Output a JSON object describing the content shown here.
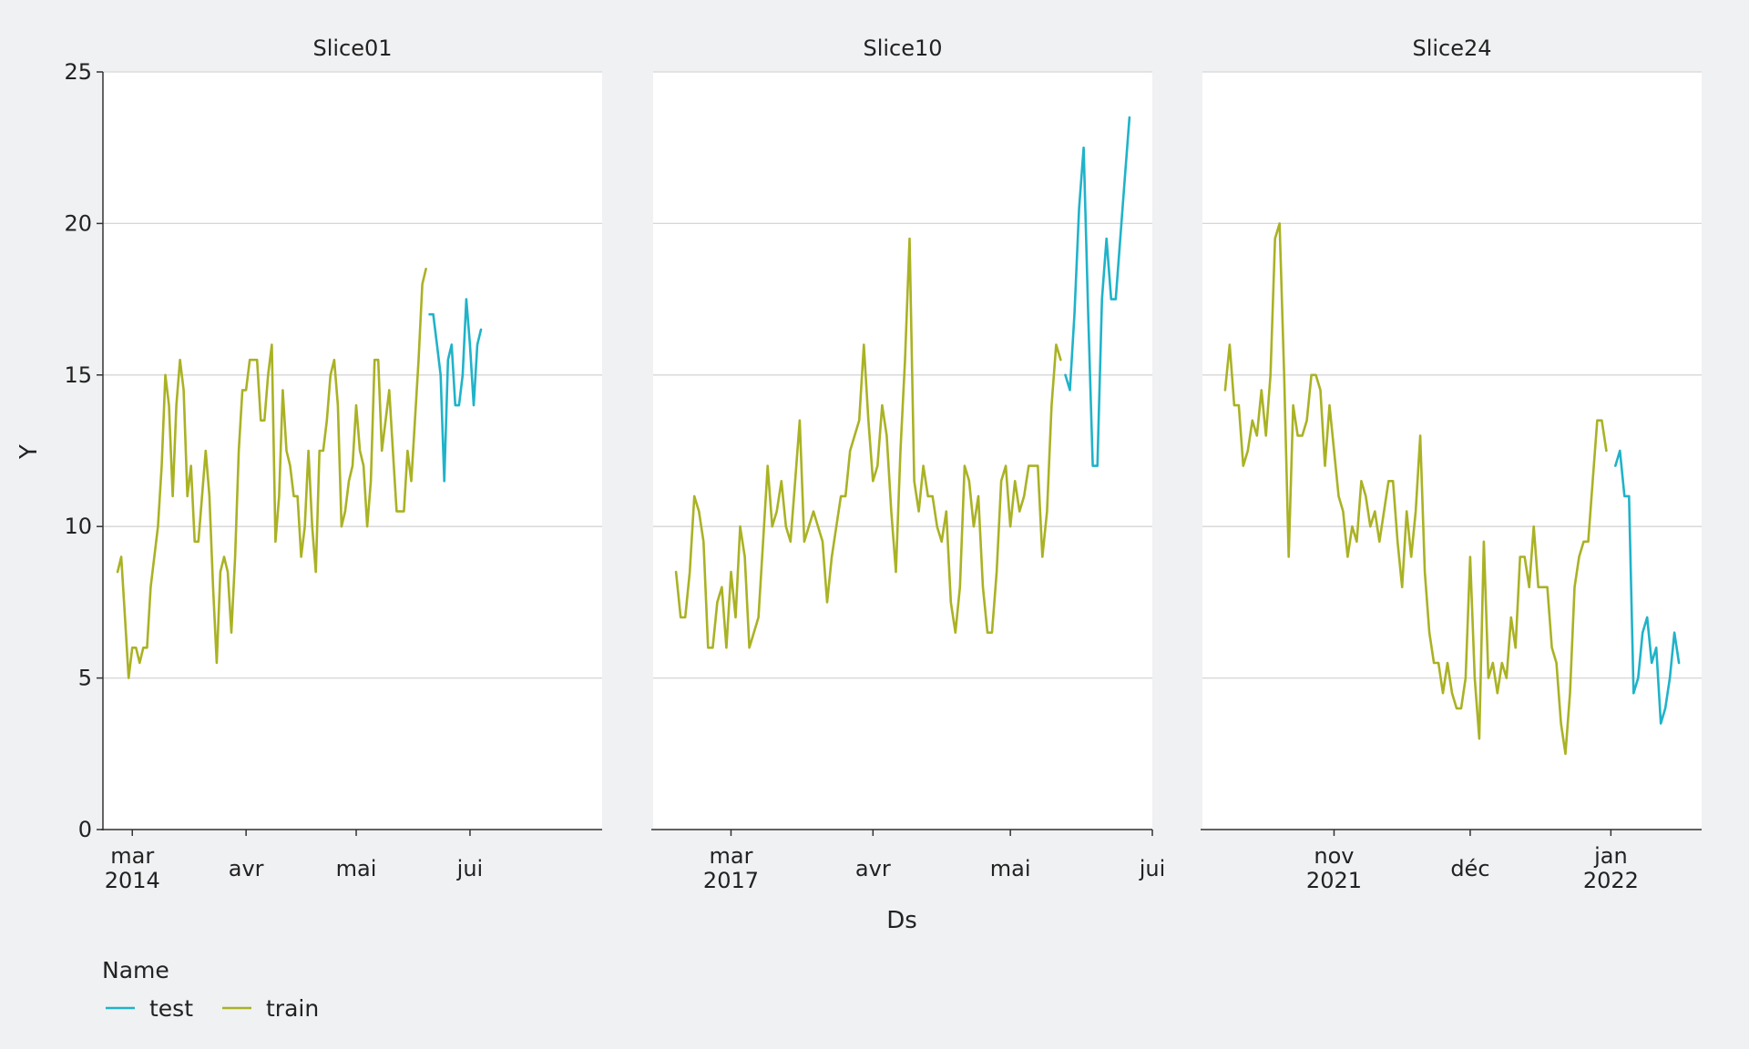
{
  "chart_data": {
    "type": "line",
    "xlabel": "Ds",
    "ylabel": "Y",
    "ylim": [
      0,
      25
    ],
    "y_ticks": [
      "0",
      "5",
      "10",
      "15",
      "20",
      "25"
    ],
    "grid": "horizontal",
    "legend": {
      "title": "Name",
      "position": "bottom-left",
      "items": [
        {
          "name": "test",
          "color": "#1fb3c9"
        },
        {
          "name": "train",
          "color": "#aab224"
        }
      ]
    },
    "panels": [
      {
        "title": "Slice01",
        "xlim": [
          "2014-02-21",
          "2014-07-07"
        ],
        "x_ticks": [
          {
            "date": "2014-03-01",
            "label": "mar",
            "sublabel": "2014"
          },
          {
            "date": "2014-04-01",
            "label": "avr",
            "sublabel": ""
          },
          {
            "date": "2014-05-01",
            "label": "mai",
            "sublabel": ""
          },
          {
            "date": "2014-06-01",
            "label": "jui",
            "sublabel": ""
          }
        ],
        "series": [
          {
            "name": "train",
            "start": "2014-02-25",
            "step_days": 1,
            "values": [
              8.5,
              9,
              7,
              5,
              6,
              6,
              5.5,
              6,
              6,
              8,
              9,
              10,
              12,
              15,
              14,
              11,
              14,
              15.5,
              14.5,
              11,
              12,
              9.5,
              9.5,
              11,
              12.5,
              11,
              8,
              5.5,
              8.5,
              9,
              8.5,
              6.5,
              9,
              12.5,
              14.5,
              14.5,
              15.5,
              15.5,
              15.5,
              13.5,
              13.5,
              15,
              16,
              9.5,
              11,
              14.5,
              12.5,
              12,
              11,
              11,
              9,
              10,
              12.5,
              10,
              8.5,
              12.5,
              12.5,
              13.5,
              15,
              15.5,
              14,
              10,
              10.5,
              11.5,
              12,
              14,
              12.5,
              12,
              10,
              11.5,
              15.5,
              15.5,
              12.5,
              13.5,
              14.5,
              12.5,
              10.5,
              10.5,
              10.5,
              12.5,
              11.5,
              13.5,
              15.5,
              18,
              18.5
            ]
          },
          {
            "name": "test",
            "start": "2014-05-21",
            "step_days": 1,
            "values": [
              17,
              17,
              16,
              15,
              11.5,
              15.5,
              16,
              14,
              14,
              15,
              17.5,
              16,
              14,
              16,
              16.5
            ]
          }
        ]
      },
      {
        "title": "Slice10",
        "xlim": [
          "2017-02-12",
          "2017-06-01"
        ],
        "x_ticks": [
          {
            "date": "2017-03-01",
            "label": "mar",
            "sublabel": "2017"
          },
          {
            "date": "2017-04-01",
            "label": "avr",
            "sublabel": ""
          },
          {
            "date": "2017-05-01",
            "label": "mai",
            "sublabel": ""
          },
          {
            "date": "2017-06-01",
            "label": "jui",
            "sublabel": ""
          }
        ],
        "series": [
          {
            "name": "train",
            "start": "2017-02-17",
            "step_days": 1,
            "values": [
              8.5,
              7,
              7,
              8.5,
              11,
              10.5,
              9.5,
              6,
              6,
              7.5,
              8,
              6,
              8.5,
              7,
              10,
              9,
              6,
              6.5,
              7,
              9.5,
              12,
              10,
              10.5,
              11.5,
              10,
              9.5,
              11.5,
              13.5,
              9.5,
              10,
              10.5,
              10,
              9.5,
              7.5,
              9,
              10,
              11,
              11,
              12.5,
              13,
              13.5,
              16,
              13.5,
              11.5,
              12,
              14,
              13,
              10.5,
              8.5,
              12.5,
              15.5,
              19.5,
              11.5,
              10.5,
              12,
              11,
              11,
              10,
              9.5,
              10.5,
              7.5,
              6.5,
              8,
              12,
              11.5,
              10,
              11,
              8,
              6.5,
              6.5,
              8.5,
              11.5,
              12,
              10,
              11.5,
              10.5,
              11,
              12,
              12,
              12,
              9,
              10.5,
              14,
              16,
              15.5
            ]
          },
          {
            "name": "test",
            "start": "2017-05-13",
            "step_days": 1,
            "values": [
              15,
              14.5,
              17,
              20.5,
              22.5,
              17,
              12,
              12,
              17.5,
              19.5,
              17.5,
              17.5,
              19.5,
              21.5,
              23.5
            ]
          }
        ]
      },
      {
        "title": "Slice24",
        "xlim": [
          "2021-09-30",
          "2022-01-18"
        ],
        "x_ticks": [
          {
            "date": "2021-10-29",
            "label": "nov",
            "sublabel": "2021"
          },
          {
            "date": "2021-11-28",
            "label": "déc",
            "sublabel": ""
          },
          {
            "date": "2021-12-29",
            "label": "jan",
            "sublabel": "2022"
          }
        ],
        "series": [
          {
            "name": "train",
            "start": "2021-10-05",
            "step_days": 1,
            "values": [
              14.5,
              16,
              14,
              14,
              12,
              12.5,
              13.5,
              13,
              14.5,
              13,
              15,
              19.5,
              20,
              15,
              9,
              14,
              13,
              13,
              13.5,
              15,
              15,
              14.5,
              12,
              14,
              12.5,
              11,
              10.5,
              9,
              10,
              9.5,
              11.5,
              11,
              10,
              10.5,
              9.5,
              10.5,
              11.5,
              11.5,
              9.5,
              8,
              10.5,
              9,
              10.5,
              13,
              8.5,
              6.5,
              5.5,
              5.5,
              4.5,
              5.5,
              4.5,
              4,
              4,
              5,
              9,
              5,
              3,
              9.5,
              5,
              5.5,
              4.5,
              5.5,
              5,
              7,
              6,
              9,
              9,
              8,
              10,
              8,
              8,
              8,
              6,
              5.5,
              3.5,
              2.5,
              4.5,
              8,
              9,
              9.5,
              9.5,
              11.5,
              13.5,
              13.5,
              12.5
            ]
          },
          {
            "name": "test",
            "start": "2021-12-30",
            "step_days": 1,
            "values": [
              12,
              12.5,
              11,
              11,
              4.5,
              5,
              6.5,
              7,
              5.5,
              6,
              3.5,
              4,
              5,
              6.5,
              5.5
            ]
          }
        ]
      }
    ]
  }
}
